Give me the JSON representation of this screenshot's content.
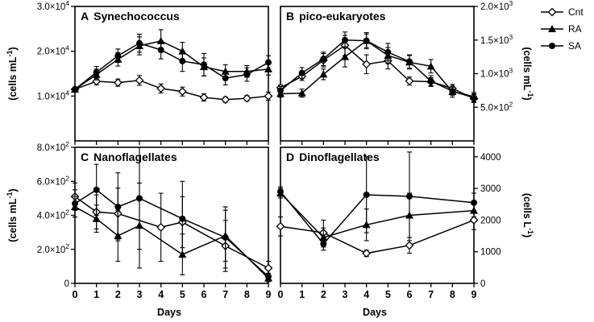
{
  "legend": [
    {
      "name": "Cnt",
      "marker": "diamond-open"
    },
    {
      "name": "RA",
      "marker": "triangle"
    },
    {
      "name": "SA",
      "marker": "circle"
    }
  ],
  "xlabel": "Days",
  "chart_data": [
    {
      "id": "A",
      "type": "line",
      "title": "Synechococcus",
      "ylabel_prefix": "(cells mL",
      "ylabel_exp": "-1",
      "ylabel_suffix": ")",
      "y_axis_side": "left",
      "ylim": [
        0,
        30000
      ],
      "yticks": [
        {
          "v": 10000,
          "m": "1.0",
          "e": "4"
        },
        {
          "v": 20000,
          "m": "2.0",
          "e": "4"
        },
        {
          "v": 30000,
          "m": "3.0",
          "e": "4"
        }
      ],
      "xticks": [
        0,
        1,
        2,
        3,
        4,
        5,
        6,
        7,
        8,
        9
      ],
      "series": [
        {
          "name": "Cnt",
          "marker": "diamond-open",
          "x": [
            0,
            1,
            2,
            3,
            4,
            5,
            6,
            7,
            8,
            9
          ],
          "y": [
            11500,
            13300,
            13000,
            13500,
            11700,
            11000,
            9700,
            9200,
            9500,
            10000
          ],
          "err": [
            500,
            800,
            800,
            1100,
            1000,
            1000,
            800,
            600,
            600,
            900
          ]
        },
        {
          "name": "RA",
          "marker": "triangle",
          "x": [
            0,
            1,
            2,
            3,
            4,
            5,
            6,
            7,
            8,
            9
          ],
          "y": [
            11500,
            14800,
            18200,
            21200,
            22300,
            20000,
            16500,
            15500,
            15500,
            16000
          ],
          "err": [
            500,
            1200,
            1500,
            2000,
            2500,
            2000,
            2000,
            1500,
            1300,
            1300
          ]
        },
        {
          "name": "SA",
          "marker": "circle",
          "x": [
            0,
            1,
            2,
            3,
            4,
            5,
            6,
            7,
            8,
            9
          ],
          "y": [
            11500,
            15300,
            19000,
            21800,
            20300,
            17800,
            17000,
            14000,
            14800,
            17500
          ],
          "err": [
            500,
            1300,
            1500,
            2000,
            2000,
            2300,
            2500,
            1500,
            1500,
            1500
          ]
        }
      ]
    },
    {
      "id": "B",
      "type": "line",
      "title": "pico-eukaryotes",
      "ylabel_prefix": "(cells mL",
      "ylabel_exp": "-1",
      "ylabel_suffix": ")",
      "y_axis_side": "right",
      "ylim": [
        0,
        2000
      ],
      "yticks": [
        {
          "v": 500,
          "m": "5.0",
          "e": "2"
        },
        {
          "v": 1000,
          "m": "1.0",
          "e": "3"
        },
        {
          "v": 1500,
          "m": "1.5",
          "e": "3"
        },
        {
          "v": 2000,
          "m": "2.0",
          "e": "3"
        }
      ],
      "xticks": [
        0,
        1,
        2,
        3,
        4,
        5,
        6,
        7,
        8,
        9
      ],
      "series": [
        {
          "name": "Cnt",
          "marker": "diamond-open",
          "x": [
            0,
            1,
            2,
            3,
            4,
            5,
            6,
            7,
            8,
            9
          ],
          "y": [
            790,
            960,
            1200,
            1420,
            1140,
            1190,
            890,
            880,
            780,
            630
          ],
          "err": [
            40,
            60,
            100,
            150,
            140,
            120,
            60,
            60,
            60,
            60
          ]
        },
        {
          "name": "RA",
          "marker": "triangle",
          "x": [
            0,
            1,
            2,
            3,
            4,
            5,
            6,
            7,
            8,
            9
          ],
          "y": [
            700,
            710,
            990,
            1250,
            1490,
            1270,
            1170,
            1110,
            730,
            660
          ],
          "err": [
            50,
            60,
            80,
            150,
            120,
            120,
            100,
            100,
            80,
            60
          ]
        },
        {
          "name": "SA",
          "marker": "circle",
          "x": [
            0,
            1,
            2,
            3,
            4,
            5,
            6,
            7,
            8,
            9
          ],
          "y": [
            750,
            1010,
            1220,
            1500,
            1490,
            1320,
            1180,
            890,
            740,
            640
          ],
          "err": [
            60,
            80,
            100,
            120,
            100,
            130,
            100,
            80,
            60,
            60
          ]
        }
      ]
    },
    {
      "id": "C",
      "type": "line",
      "title": "Nanoflagellates",
      "ylabel_prefix": "(cells mL",
      "ylabel_exp": "-1",
      "ylabel_suffix": ")",
      "y_axis_side": "left",
      "ylim": [
        0,
        800
      ],
      "yticks": [
        {
          "v": 0,
          "m": "0",
          "e": ""
        },
        {
          "v": 200,
          "m": "2.0",
          "e": "2"
        },
        {
          "v": 400,
          "m": "4.0",
          "e": "2"
        },
        {
          "v": 600,
          "m": "6.0",
          "e": "2"
        },
        {
          "v": 800,
          "m": "8.0",
          "e": "2"
        }
      ],
      "xticks": [
        0,
        1,
        2,
        3,
        4,
        5,
        6,
        7,
        8,
        9
      ],
      "series": [
        {
          "name": "Cnt",
          "marker": "diamond-open",
          "x": [
            0,
            1,
            2,
            4,
            5,
            7,
            9
          ],
          "y": [
            510,
            420,
            410,
            330,
            360,
            220,
            90
          ],
          "err": [
            80,
            100,
            150,
            200,
            150,
            150,
            40
          ]
        },
        {
          "name": "RA",
          "marker": "triangle",
          "x": [
            0,
            1,
            2,
            3,
            5,
            7,
            9
          ],
          "y": [
            450,
            380,
            280,
            340,
            170,
            280,
            30
          ],
          "err": [
            60,
            80,
            150,
            250,
            120,
            150,
            20
          ]
        },
        {
          "name": "SA",
          "marker": "circle",
          "x": [
            0,
            1,
            2,
            3,
            5,
            7,
            9
          ],
          "y": [
            470,
            550,
            450,
            500,
            380,
            270,
            40
          ],
          "err": [
            80,
            150,
            200,
            300,
            220,
            180,
            20
          ]
        }
      ]
    },
    {
      "id": "D",
      "type": "line",
      "title": "Dinoflagellates",
      "ylabel_prefix": "(cells L",
      "ylabel_exp": "-1",
      "ylabel_suffix": ")",
      "y_axis_side": "right",
      "ylim": [
        0,
        4300
      ],
      "yticks": [
        {
          "v": 0,
          "m": "0",
          "e": ""
        },
        {
          "v": 1000,
          "m": "1000",
          "e": ""
        },
        {
          "v": 2000,
          "m": "2000",
          "e": ""
        },
        {
          "v": 3000,
          "m": "3000",
          "e": ""
        },
        {
          "v": 4000,
          "m": "4000",
          "e": ""
        }
      ],
      "xticks": [
        0,
        1,
        2,
        3,
        4,
        5,
        6,
        7,
        8,
        9
      ],
      "series": [
        {
          "name": "Cnt",
          "marker": "diamond-open",
          "x": [
            0,
            2,
            4,
            6,
            9
          ],
          "y": [
            1800,
            1600,
            950,
            1200,
            2000
          ],
          "err": [
            300,
            400,
            100,
            250,
            300
          ]
        },
        {
          "name": "RA",
          "marker": "triangle",
          "x": [
            0,
            2,
            4,
            6,
            9
          ],
          "y": [
            2850,
            1450,
            1850,
            2150,
            2300
          ],
          "err": [
            150,
            300,
            500,
            700,
            200
          ]
        },
        {
          "name": "SA",
          "marker": "circle",
          "x": [
            0,
            2,
            4,
            6,
            9
          ],
          "y": [
            2900,
            1250,
            2800,
            2750,
            2550
          ],
          "err": [
            150,
            200,
            1200,
            1400,
            300
          ]
        }
      ]
    }
  ]
}
